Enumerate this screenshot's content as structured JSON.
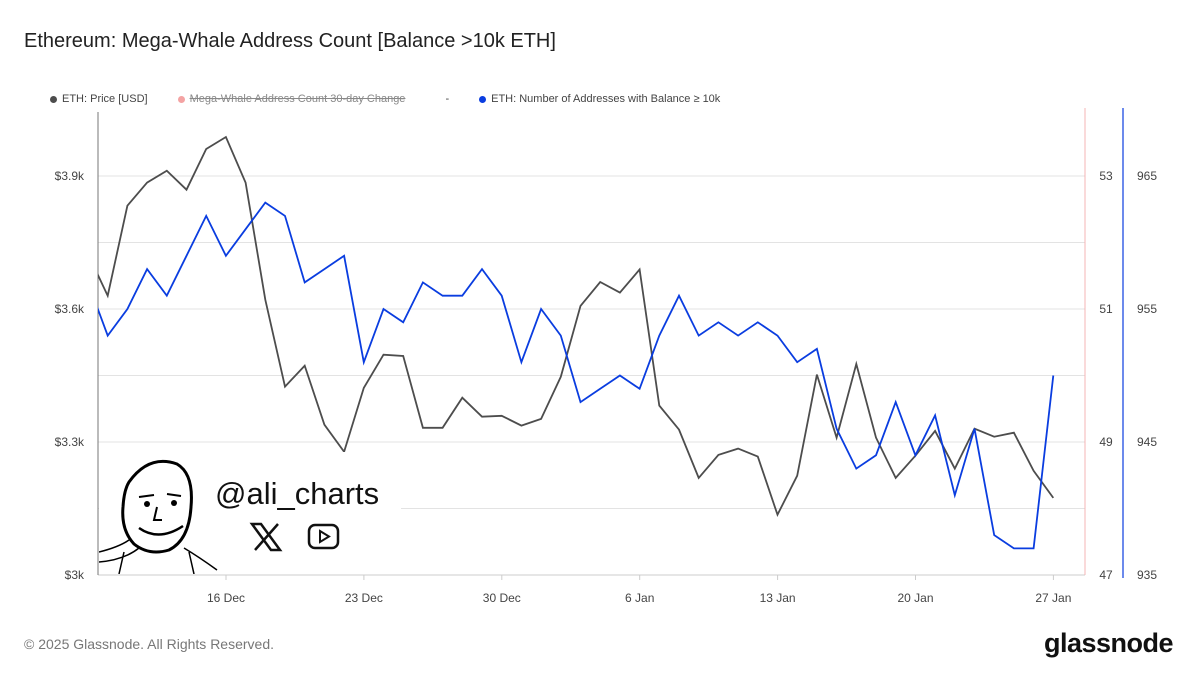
{
  "title": "Ethereum: Mega-Whale Address Count [Balance >10k ETH]",
  "legend": [
    {
      "label": "ETH: Price [USD]",
      "color": "#4d4d4d",
      "hidden": false
    },
    {
      "label": "Mega-Whale Address Count 30-day Change",
      "color": "#f4a3a3",
      "hidden": true
    },
    {
      "label": "-",
      "color": "",
      "hidden": false
    },
    {
      "label": "ETH: Number of Addresses with Balance ≥ 10k",
      "color": "#0a3de0",
      "hidden": false
    }
  ],
  "watermark": {
    "handle": "@ali_charts",
    "icons": [
      "x-logo-icon",
      "youtube-icon"
    ]
  },
  "footer": {
    "copyright": "© 2025 Glassnode. All Rights Reserved.",
    "brand": "glassnode"
  },
  "chart_data": {
    "type": "line",
    "title": "Ethereum: Mega-Whale Address Count [Balance >10k ETH]",
    "x_tick_labels": [
      "16 Dec",
      "23 Dec",
      "30 Dec",
      "6 Jan",
      "13 Jan",
      "20 Jan",
      "27 Jan"
    ],
    "y_left": {
      "ticks": [
        "$3k",
        "$3.3k",
        "$3.6k",
        "$3.9k"
      ],
      "range": [
        3000,
        4050
      ]
    },
    "y_right_change": {
      "ticks": [
        "47",
        "49",
        "51",
        "53"
      ],
      "range": [
        47,
        54.6
      ]
    },
    "y_right_count": {
      "ticks": [
        "935",
        "945",
        "955",
        "965"
      ],
      "range": [
        935,
        961.5
      ]
    },
    "grid": true,
    "legend_position": "top-left",
    "x": [
      "2024-12-09",
      "2024-12-10",
      "2024-12-11",
      "2024-12-12",
      "2024-12-13",
      "2024-12-14",
      "2024-12-15",
      "2024-12-16",
      "2024-12-17",
      "2024-12-18",
      "2024-12-19",
      "2024-12-20",
      "2024-12-21",
      "2024-12-22",
      "2024-12-23",
      "2024-12-24",
      "2024-12-25",
      "2024-12-26",
      "2024-12-27",
      "2024-12-28",
      "2024-12-29",
      "2024-12-30",
      "2024-12-31",
      "2025-01-01",
      "2025-01-02",
      "2025-01-03",
      "2025-01-04",
      "2025-01-05",
      "2025-01-06",
      "2025-01-07",
      "2025-01-08",
      "2025-01-09",
      "2025-01-10",
      "2025-01-11",
      "2025-01-12",
      "2025-01-13",
      "2025-01-14",
      "2025-01-15",
      "2025-01-16",
      "2025-01-17",
      "2025-01-18",
      "2025-01-19",
      "2025-01-20",
      "2025-01-21",
      "2025-01-22",
      "2025-01-23",
      "2025-01-24",
      "2025-01-25",
      "2025-01-26",
      "2025-01-27"
    ],
    "series": [
      {
        "name": "ETH: Price [USD]",
        "axis": "left",
        "color": "#4d4d4d",
        "values": [
          3724,
          3630,
          3833,
          3885,
          3912,
          3869,
          3961,
          3988,
          3885,
          3621,
          3425,
          3472,
          3339,
          3278,
          3422,
          3497,
          3494,
          3332,
          3332,
          3400,
          3357,
          3359,
          3337,
          3352,
          3447,
          3607,
          3661,
          3637,
          3689,
          3382,
          3328,
          3219,
          3271,
          3285,
          3267,
          3136,
          3224,
          3452,
          3310,
          3476,
          3310,
          3219,
          3269,
          3325,
          3240,
          3330,
          3312,
          3321,
          3235,
          3174
        ]
      },
      {
        "name": "ETH: Number of Addresses with Balance ≥ 10k",
        "axis": "right",
        "color": "#0a3de0",
        "values": [
          957,
          953,
          955,
          958,
          956,
          959,
          962,
          959,
          961,
          963,
          962,
          957,
          958,
          959,
          951,
          955,
          954,
          957,
          956,
          956,
          958,
          956,
          951,
          955,
          953,
          948,
          949,
          950,
          949,
          953,
          956,
          953,
          954,
          953,
          954,
          953,
          951,
          952,
          946,
          943,
          944,
          948,
          944,
          947,
          941,
          946,
          938,
          937,
          937,
          950
        ]
      }
    ]
  }
}
